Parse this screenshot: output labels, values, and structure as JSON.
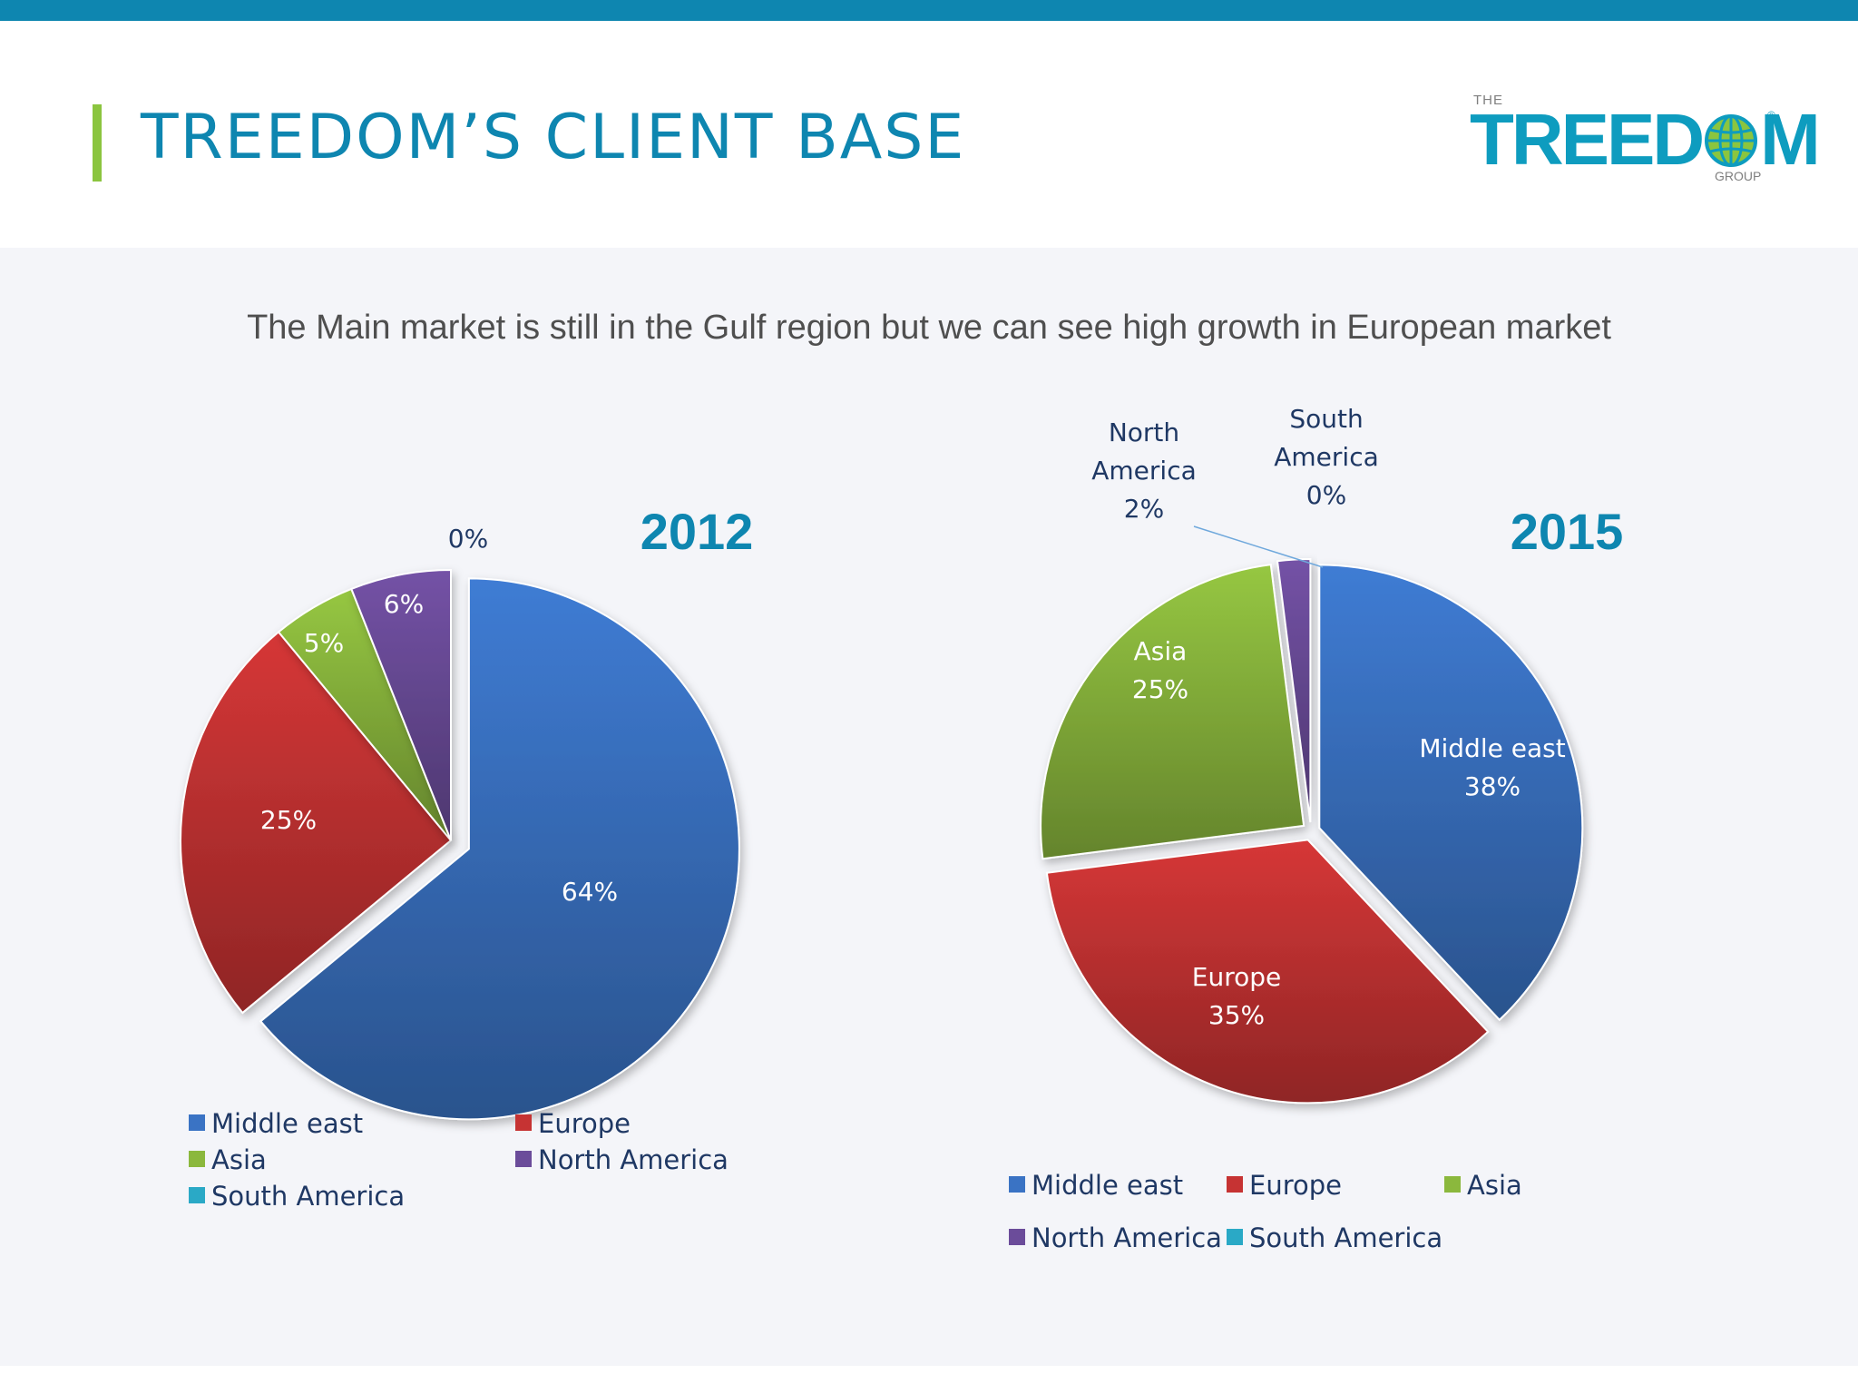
{
  "slide": {
    "title": "TREEDOM’S CLIENT BASE",
    "subtitle": "The Main market is still in the Gulf region but we can see high growth in European market"
  },
  "logo": {
    "the": "THE",
    "word_left": "TREED",
    "word_right": "M",
    "group": "GROUP",
    "reg": "®"
  },
  "colors": {
    "Middle east": "#3a73c4",
    "Europe": "#c63333",
    "Asia": "#8bb83d",
    "North America": "#6b4c9a",
    "South America": "#2aa9c6",
    "accent": "#0e86b0"
  },
  "chart_data": [
    {
      "type": "pie",
      "title": "2012",
      "categories": [
        "Middle east",
        "Europe",
        "Asia",
        "North America",
        "South America"
      ],
      "values": [
        64,
        25,
        5,
        6,
        0
      ],
      "labels": [
        "64%",
        "25%",
        "5%",
        "6%",
        "0%"
      ],
      "exploded": [
        "Middle east"
      ],
      "legend": "bottom"
    },
    {
      "type": "pie",
      "title": "2015",
      "categories": [
        "Middle east",
        "Europe",
        "Asia",
        "North America",
        "South America"
      ],
      "values": [
        38,
        35,
        25,
        2,
        0
      ],
      "labels": [
        "Middle east\n38%",
        "Europe\n35%",
        "Asia\n25%",
        "North\nAmerica\n2%",
        "South\nAmerica\n0%"
      ],
      "exploded": [
        "Middle east",
        "Europe",
        "Asia",
        "North America",
        "South America"
      ],
      "legend": "bottom"
    }
  ]
}
